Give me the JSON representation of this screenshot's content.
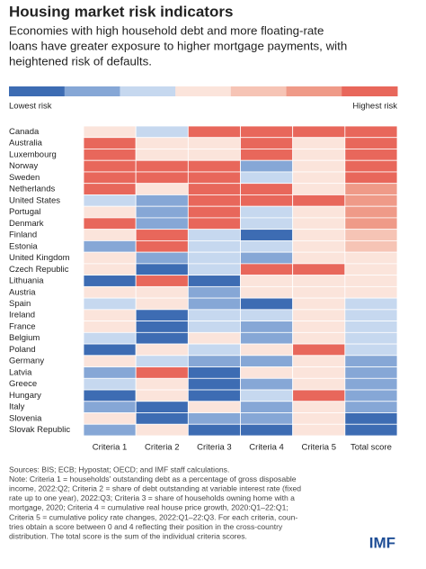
{
  "chart_data": {
    "type": "heatmap",
    "title": "Housing market risk indicators",
    "subtitle": [
      "Economies with high household debt and more floating-rate",
      "loans have greater exposure to higher mortgage payments, with",
      "heightened risk of defaults."
    ],
    "legend_low": "Lowest risk",
    "legend_high": "Highest risk",
    "colors": [
      "#3d6cb3",
      "#86a7d6",
      "#c6d8ef",
      "#fbe4db",
      "#f6c4b5",
      "#ef9a88",
      "#e8675b"
    ],
    "zlim": [
      0,
      6
    ],
    "x_categories": [
      "Criteria 1",
      "Criteria 2",
      "Criteria 3",
      "Criteria 4",
      "Criteria 5",
      "Total score"
    ],
    "y_categories": [
      "Canada",
      "Australia",
      "Luxembourg",
      "Norway",
      "Sweden",
      "Netherlands",
      "United States",
      "Portugal",
      "Denmark",
      "Finland",
      "Estonia",
      "United Kingdom",
      "Czech Republic",
      "Lithuania",
      "Austria",
      "Spain",
      "Ireland",
      "France",
      "Belgium",
      "Poland",
      "Germany",
      "Latvia",
      "Greece",
      "Hungary",
      "Italy",
      "Slovenia",
      "Slovak Republic"
    ],
    "values": [
      [
        3,
        2,
        6,
        6,
        6,
        6
      ],
      [
        6,
        3,
        3,
        6,
        3,
        6
      ],
      [
        6,
        3,
        3,
        6,
        3,
        6
      ],
      [
        6,
        6,
        6,
        1,
        3,
        6
      ],
      [
        6,
        6,
        6,
        2,
        3,
        6
      ],
      [
        6,
        3,
        6,
        6,
        3,
        5
      ],
      [
        2,
        1,
        6,
        6,
        6,
        5
      ],
      [
        3,
        1,
        6,
        2,
        3,
        5
      ],
      [
        6,
        1,
        6,
        2,
        3,
        5
      ],
      [
        3,
        6,
        2,
        0,
        3,
        4
      ],
      [
        1,
        6,
        2,
        2,
        3,
        4
      ],
      [
        3,
        1,
        2,
        1,
        3,
        3
      ],
      [
        3,
        0,
        2,
        6,
        6,
        3
      ],
      [
        0,
        6,
        0,
        3,
        3,
        3
      ],
      [
        3,
        3,
        1,
        3,
        3,
        3
      ],
      [
        2,
        3,
        1,
        0,
        3,
        2
      ],
      [
        3,
        0,
        2,
        2,
        3,
        2
      ],
      [
        3,
        0,
        2,
        1,
        3,
        2
      ],
      [
        2,
        0,
        3,
        1,
        3,
        2
      ],
      [
        0,
        3,
        2,
        3,
        6,
        2
      ],
      [
        3,
        2,
        1,
        1,
        3,
        1
      ],
      [
        1,
        6,
        0,
        3,
        3,
        1
      ],
      [
        2,
        3,
        0,
        1,
        3,
        1
      ],
      [
        0,
        3,
        0,
        2,
        6,
        1
      ],
      [
        1,
        0,
        3,
        1,
        3,
        1
      ],
      [
        3,
        0,
        1,
        1,
        3,
        0
      ],
      [
        1,
        3,
        0,
        0,
        3,
        0
      ]
    ],
    "notes": [
      "Sources: BIS; ECB; Hypostat; OECD; and IMF staff calculations.",
      "Note: Criteria 1 = households' outstanding debt as a percentage of gross disposable",
      "income, 2022:Q2; Criteria 2 = share of debt outstanding at variable interest rate (fixed",
      "rate up to one year), 2022:Q3; Criteria 3 = share of households owning home with a",
      "mortgage, 2020; Criteria 4 = cumulative real house price growth, 2020:Q1–22:Q1;",
      "Criteria 5 = cumulative policy rate changes, 2022:Q1–22:Q3. For each criteria, coun-",
      "tries obtain a score between 0 and 4 reflecting their position in the cross-country",
      "distribution. The total score is the sum of the individual criteria scores."
    ],
    "logo": "IMF"
  }
}
